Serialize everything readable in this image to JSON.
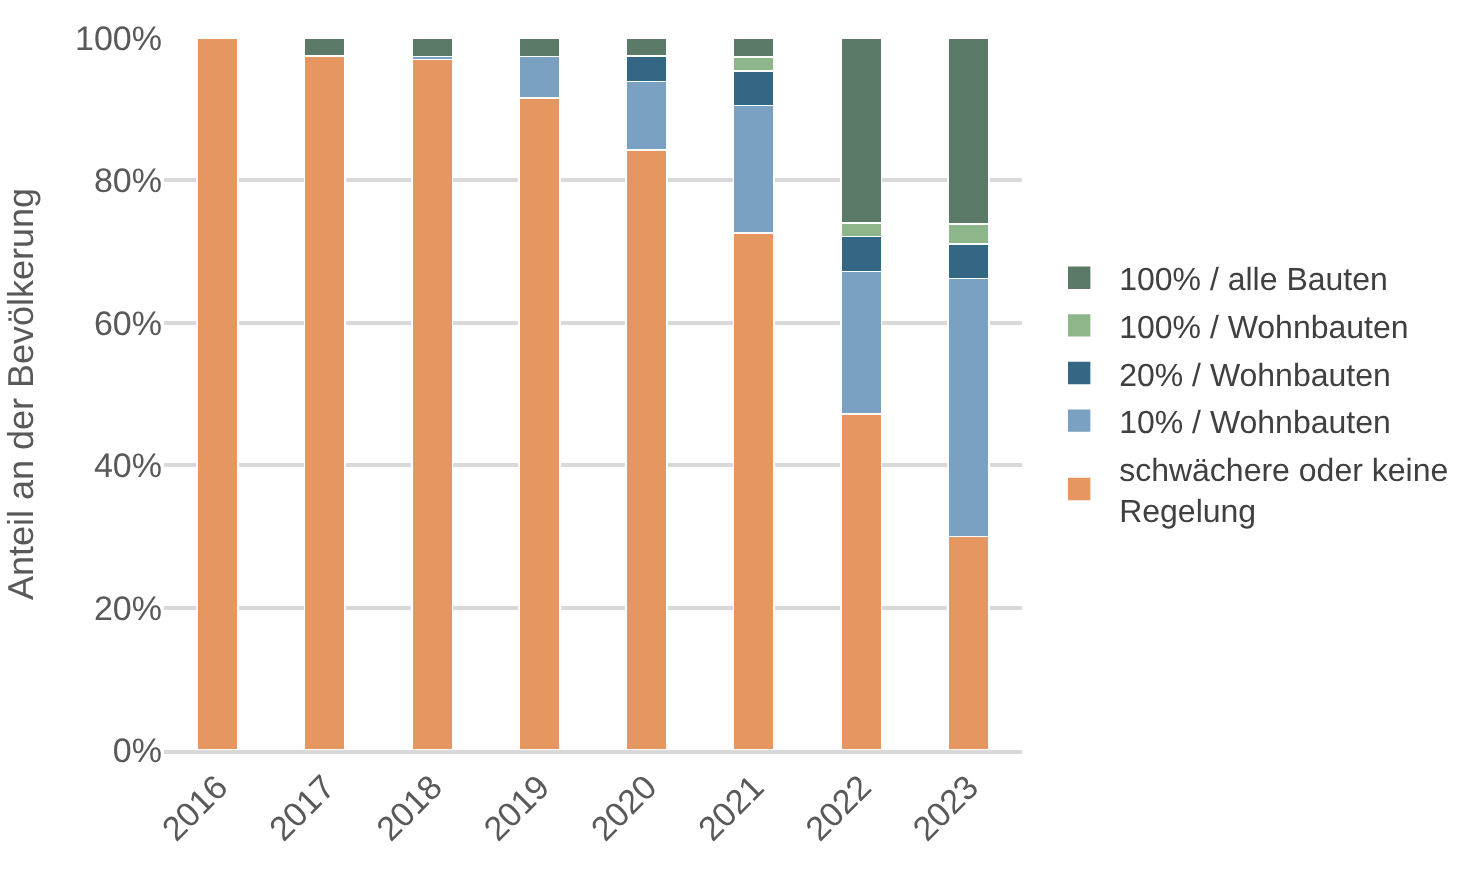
{
  "chart_data": {
    "type": "bar",
    "stacked": true,
    "ylabel": "Anteil an der Bevölkerung",
    "categories": [
      "2016",
      "2017",
      "2018",
      "2019",
      "2020",
      "2021",
      "2022",
      "2023"
    ],
    "series": [
      {
        "name": "schwächere oder keine\nRegelung",
        "color": "#e69661",
        "values": [
          100,
          97.5,
          97.0,
          91.6,
          84.3,
          72.6,
          47.2,
          30.0
        ]
      },
      {
        "name": "10% / Wohnbauten",
        "color": "#7ba1c2",
        "values": [
          null,
          null,
          0.4,
          5.8,
          9.6,
          17.9,
          20.0,
          36.2
        ]
      },
      {
        "name": "20% / Wohnbauten",
        "color": "#336784",
        "values": [
          null,
          null,
          null,
          null,
          3.6,
          4.9,
          4.9,
          4.9
        ]
      },
      {
        "name": "100% / Wohnbauten",
        "color": "#8db68a",
        "values": [
          null,
          null,
          null,
          null,
          null,
          1.9,
          1.9,
          2.8
        ]
      },
      {
        "name": "100% / alle Bauten",
        "color": "#5b7967",
        "values": [
          null,
          2.5,
          2.6,
          2.6,
          2.5,
          2.7,
          26.0,
          26.1
        ]
      }
    ],
    "ylim": [
      0,
      100
    ],
    "yticks": [
      {
        "value": 0,
        "label": "0%"
      },
      {
        "value": 20,
        "label": "20%"
      },
      {
        "value": 40,
        "label": "40%"
      },
      {
        "value": 60,
        "label": "60%"
      },
      {
        "value": 80,
        "label": "80%"
      },
      {
        "value": 100,
        "label": "100%"
      }
    ],
    "grid": "y",
    "legend": "right"
  }
}
